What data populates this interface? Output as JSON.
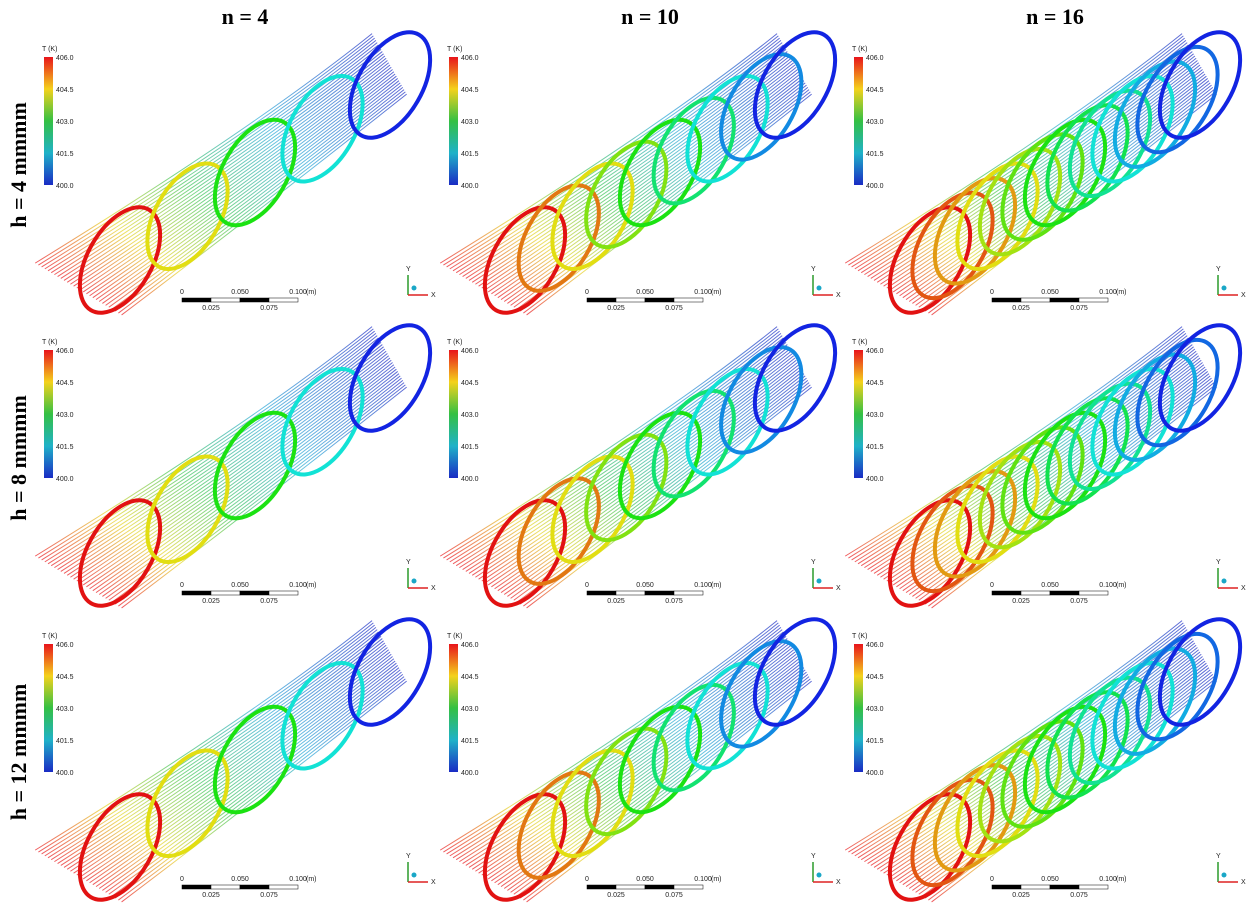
{
  "columns": [
    "n = 4",
    "n = 10",
    "n = 16"
  ],
  "rows": [
    "h = 4 mmmm",
    "h = 8 mmmm",
    "h = 12 mmmm"
  ],
  "legend": {
    "title": "T (K)",
    "ticks": [
      "406.0",
      "404.5",
      "403.0",
      "401.5",
      "400.0"
    ]
  },
  "scale_bar": {
    "top_labels": [
      "0",
      "0.050",
      "0.100"
    ],
    "unit": "(m)",
    "bottom_labels": [
      "0.025",
      "0.075"
    ]
  },
  "triad": {
    "y": "Y",
    "x": "X"
  }
}
